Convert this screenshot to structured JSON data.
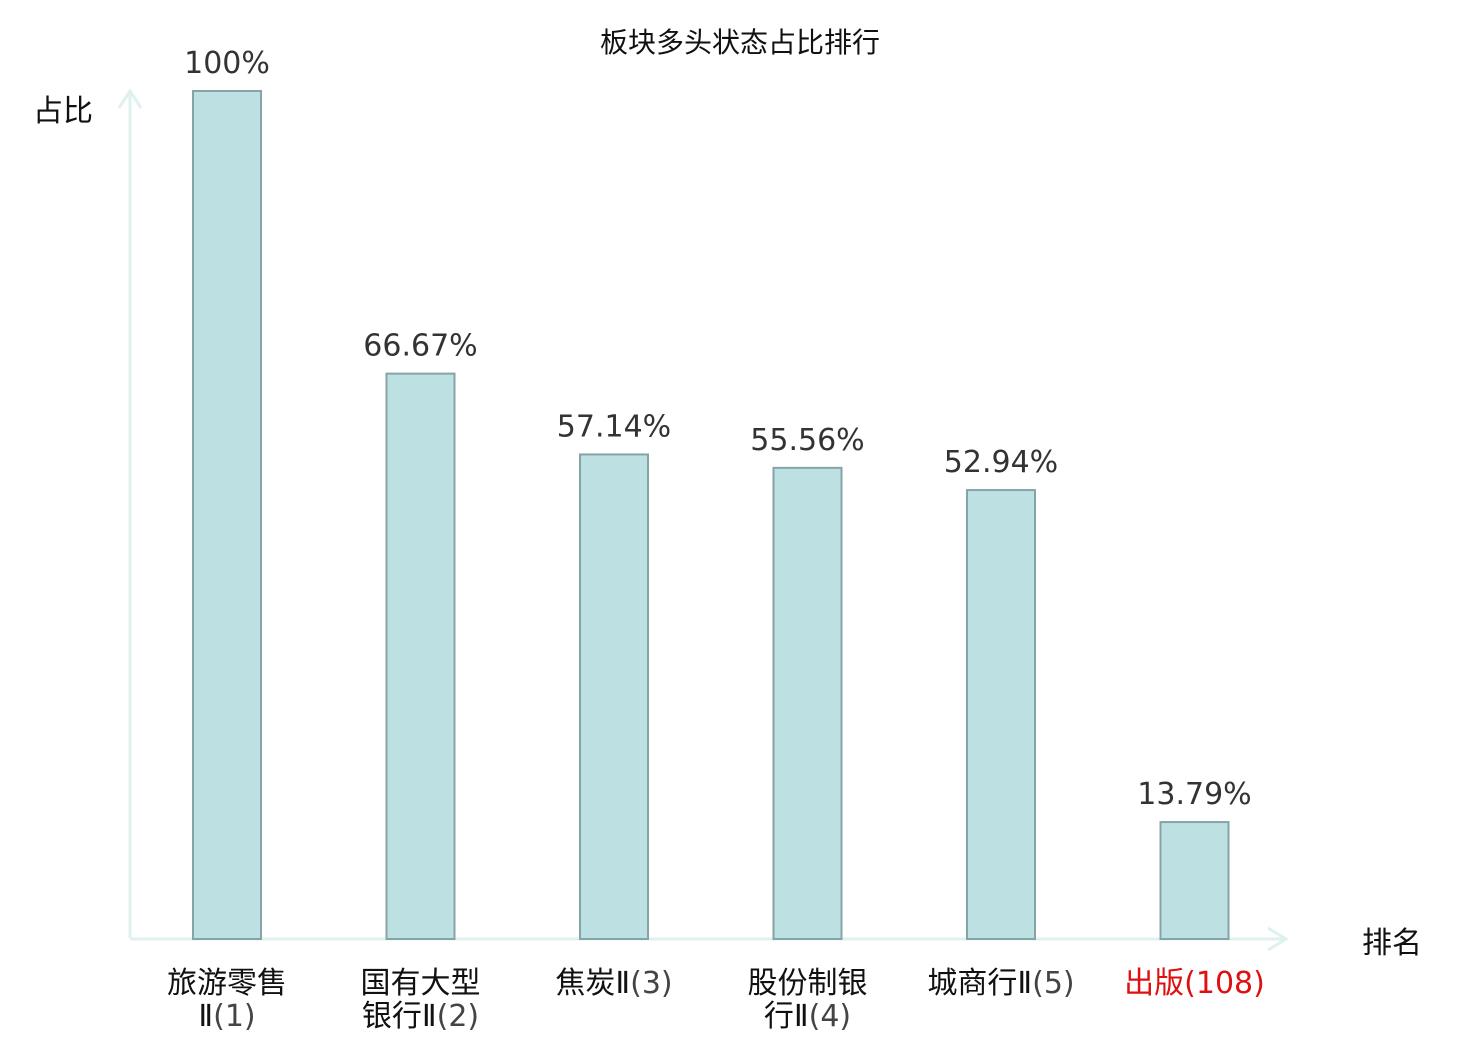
{
  "chart_data": {
    "type": "bar",
    "title": "板块多头状态占比排行",
    "ylabel": "占比",
    "xlabel": "排名",
    "ylim": [
      0,
      100
    ],
    "grid": false,
    "categories": [
      {
        "lines": [
          [
            "旅游零售",
            null
          ],
          [
            "Ⅱ",
            "(1)"
          ]
        ]
      },
      {
        "lines": [
          [
            "国有大型",
            null
          ],
          [
            "银行Ⅱ",
            "(2)"
          ]
        ]
      },
      {
        "lines": [
          [
            "焦炭Ⅱ",
            "(3)"
          ]
        ]
      },
      {
        "lines": [
          [
            "股份制银",
            null
          ],
          [
            "行Ⅱ",
            "(4)"
          ]
        ]
      },
      {
        "lines": [
          [
            "城商行Ⅱ",
            "(5)"
          ]
        ]
      },
      {
        "lines": [
          [
            "出版",
            "(108)"
          ]
        ],
        "highlight": true
      }
    ],
    "values": [
      100,
      66.67,
      57.14,
      55.56,
      52.94,
      13.79
    ],
    "value_labels": [
      "100%",
      "66.67%",
      "57.14%",
      "55.56%",
      "52.94%",
      "13.79%"
    ]
  },
  "colors": {
    "bar_fill": "#bde0e3",
    "bar_stroke": "#86a3a6",
    "axis": "#dff1ef",
    "label_text": "#111111",
    "rank_text": "#444444",
    "highlight": "#e01010"
  }
}
